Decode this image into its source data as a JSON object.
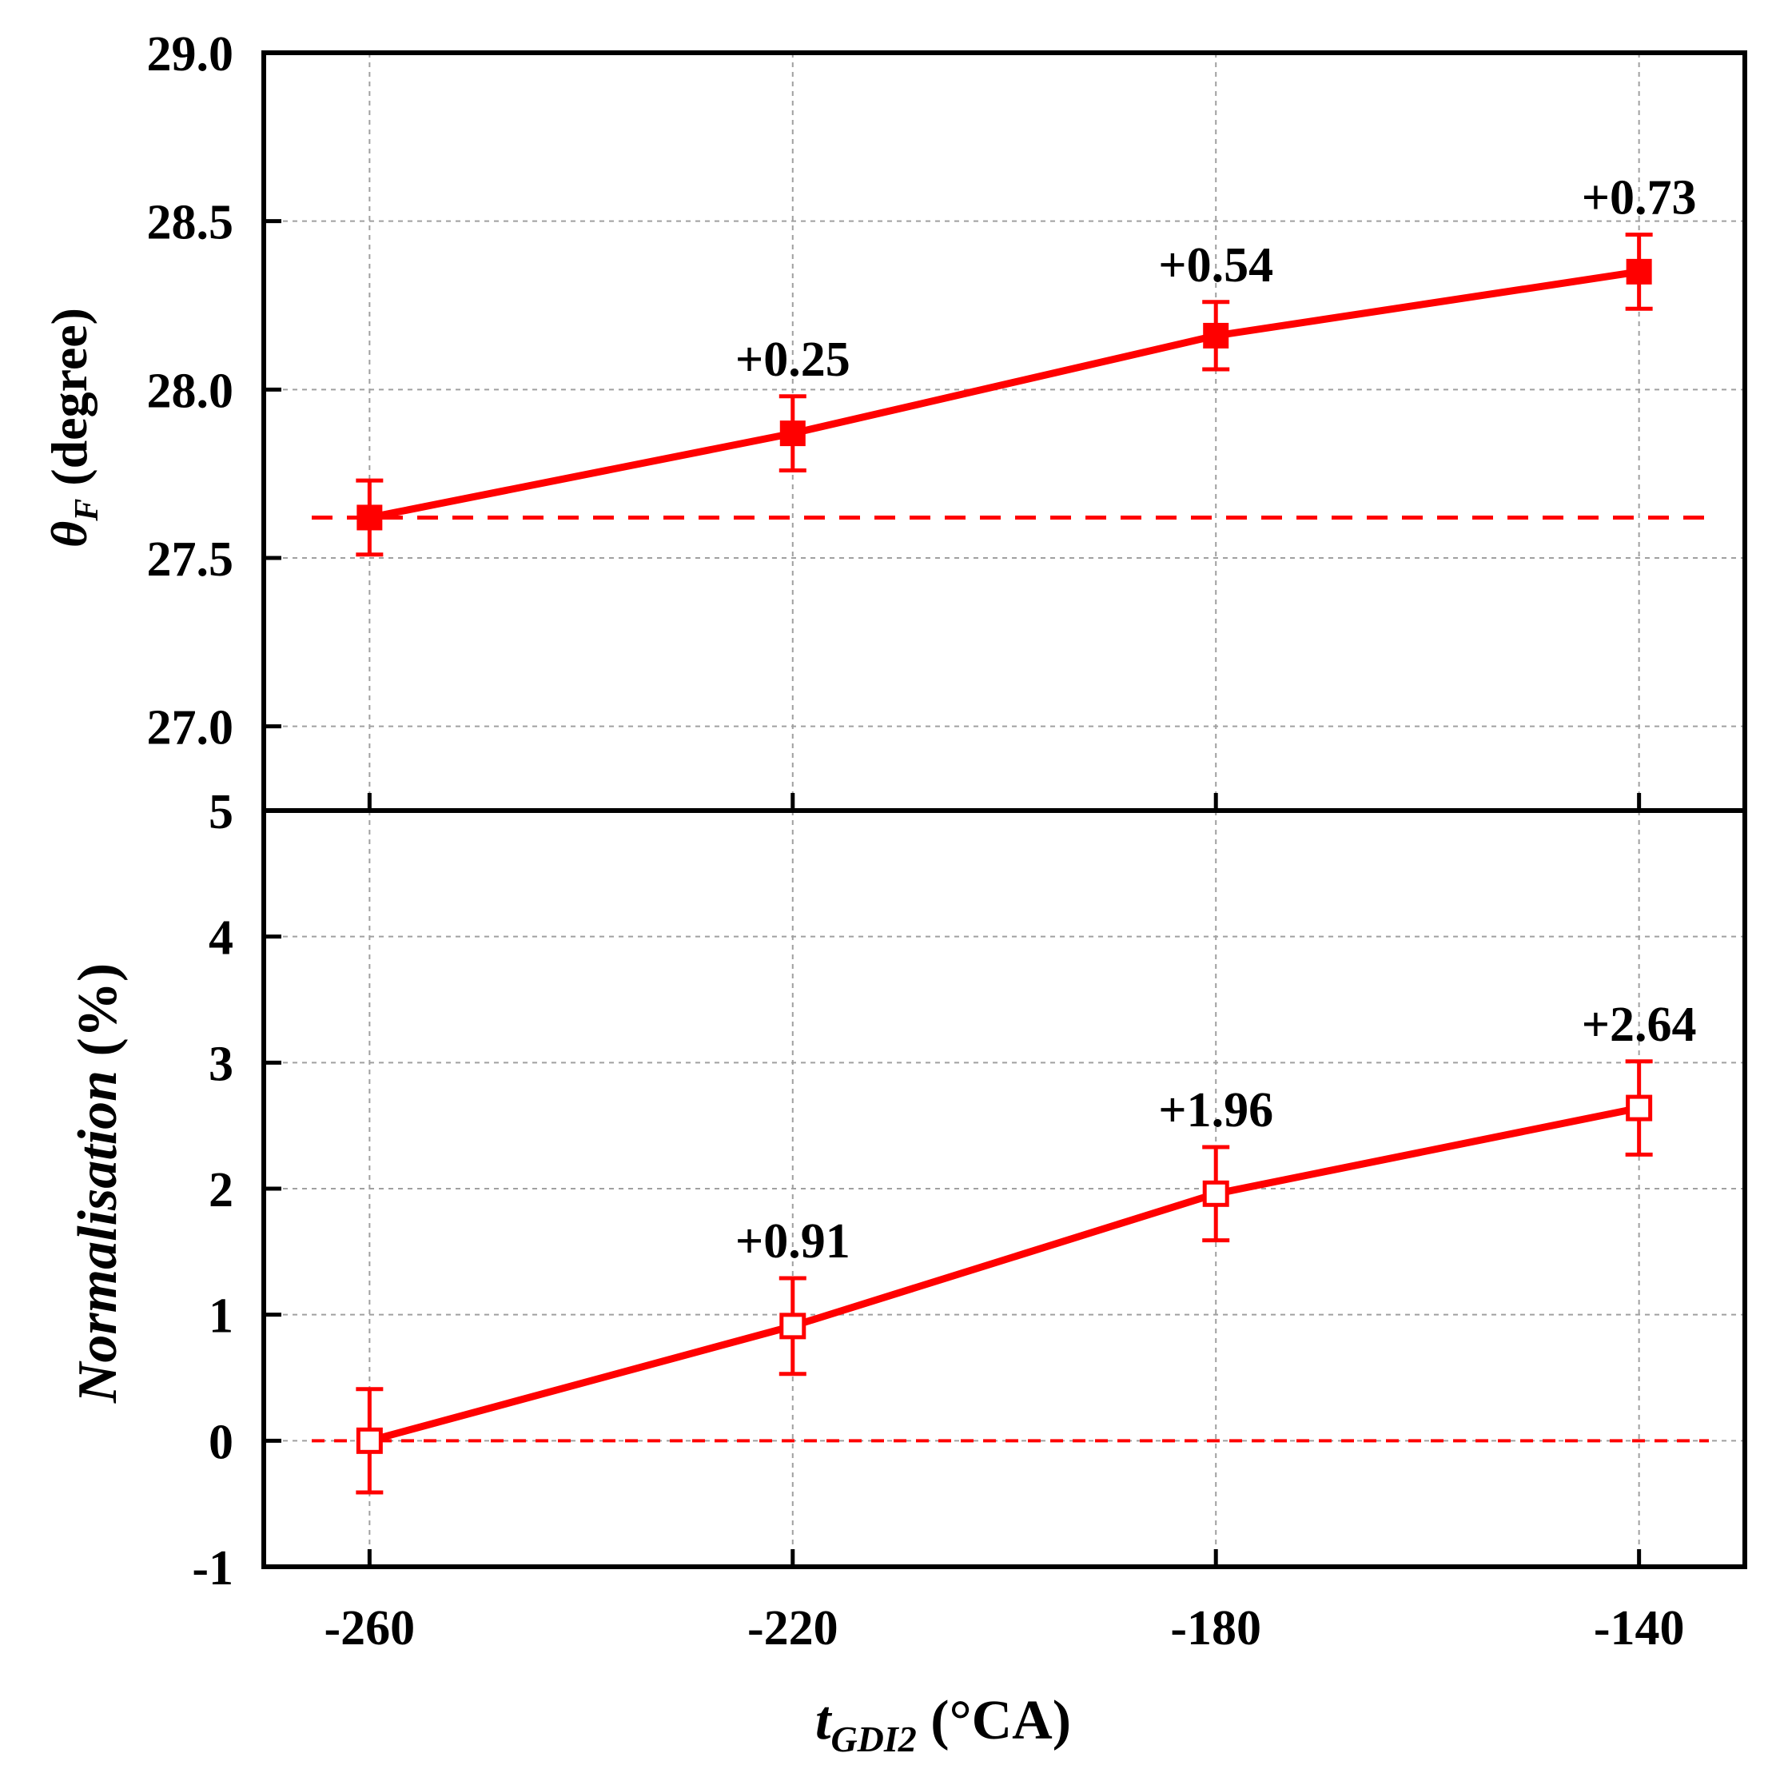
{
  "chart_data": [
    {
      "type": "line",
      "panel": "top",
      "ylabel_symbol": "θ",
      "ylabel_subscript": "F",
      "ylabel_rest": " (degree)",
      "x": [
        -260,
        -220,
        -180,
        -140
      ],
      "xlim": [
        -270,
        -130
      ],
      "ylim": [
        26.75,
        29.0
      ],
      "yticks": [
        "27.0",
        "27.5",
        "28.0",
        "28.5",
        "29.0"
      ],
      "ytick_values": [
        27.0,
        27.5,
        28.0,
        28.5,
        29.0
      ],
      "series": [
        {
          "values": [
            27.62,
            27.87,
            28.16,
            28.35
          ],
          "errors": [
            0.11,
            0.11,
            0.1,
            0.11
          ],
          "marker": "filled-square",
          "color": "#ff0000"
        }
      ],
      "reference_line": 27.62,
      "annotations": [
        "",
        "+0.25",
        "+0.54",
        "+0.73"
      ],
      "grid": true
    },
    {
      "type": "line",
      "panel": "bottom",
      "ylabel": "Normalisation",
      "ylabel_rest": " (%)",
      "x": [
        -260,
        -220,
        -180,
        -140
      ],
      "xlim": [
        -270,
        -130
      ],
      "ylim": [
        -1,
        5
      ],
      "yticks": [
        "-1",
        "0",
        "1",
        "2",
        "3",
        "4",
        "5"
      ],
      "ytick_values": [
        -1,
        0,
        1,
        2,
        3,
        4,
        5
      ],
      "series": [
        {
          "values": [
            0,
            0.91,
            1.96,
            2.64
          ],
          "errors": [
            0.41,
            0.38,
            0.37,
            0.37
          ],
          "marker": "open-square",
          "color": "#ff0000"
        }
      ],
      "reference_line": 0,
      "annotations": [
        "",
        "+0.91",
        "+1.96",
        "+2.64"
      ],
      "grid": true
    }
  ],
  "shared_x": {
    "xticks": [
      "-260",
      "-220",
      "-180",
      "-140"
    ],
    "xlabel_symbol": "t",
    "xlabel_subscript": "GDI2",
    "xlabel_rest": " (°CA)"
  },
  "colors": {
    "series": "#ff0000",
    "axes": "#000000",
    "grid": "#a0a0a0"
  }
}
